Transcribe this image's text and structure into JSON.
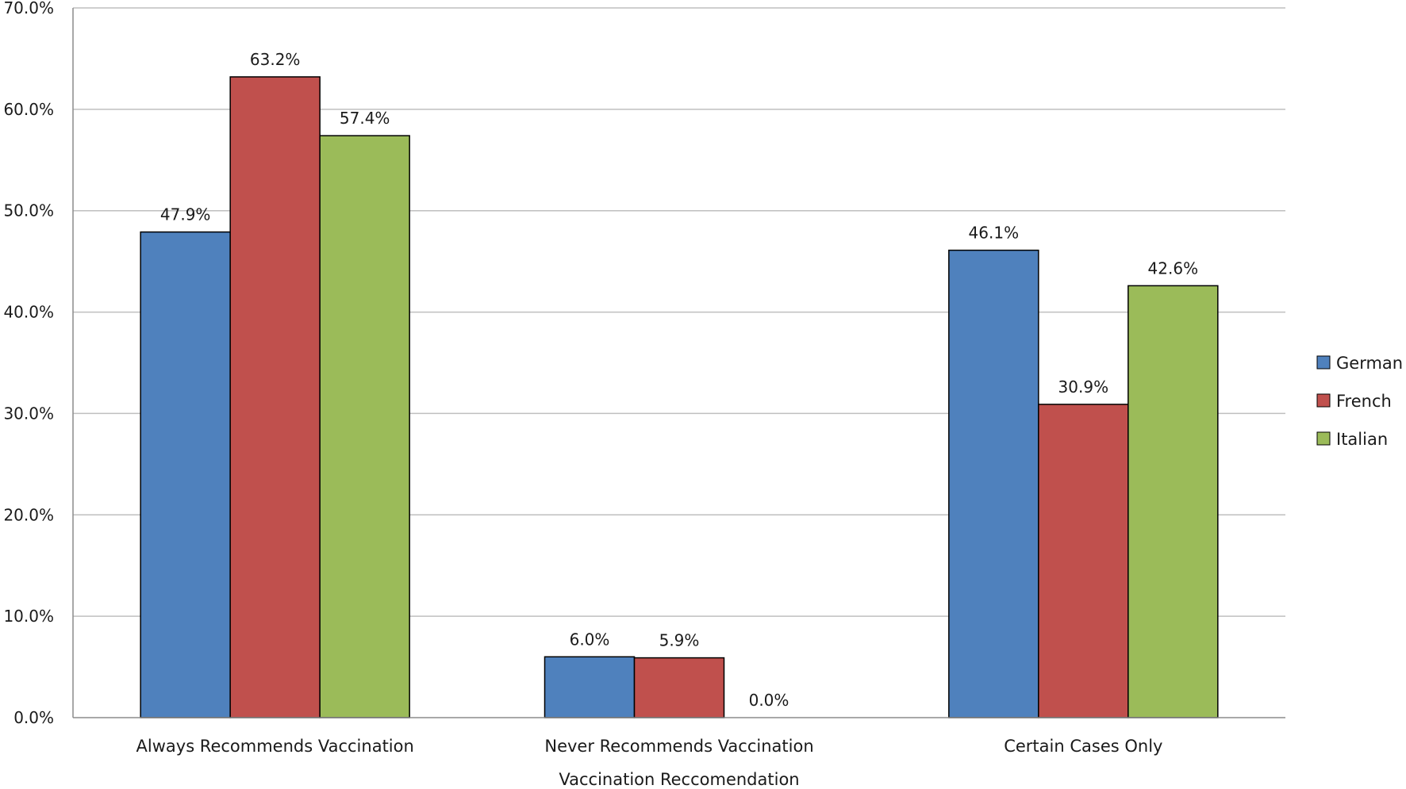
{
  "chart_data": {
    "type": "bar",
    "title": "",
    "xlabel": "Vaccination Reccomendation",
    "ylabel": "",
    "ylim": [
      0,
      70
    ],
    "y_tick_step": 10,
    "y_tick_labels": [
      "0.0%",
      "10.0%",
      "20.0%",
      "30.0%",
      "40.0%",
      "50.0%",
      "60.0%",
      "70.0%"
    ],
    "grid": true,
    "legend_position": "right",
    "categories": [
      "Always Recommends Vaccination",
      "Never Recommends Vaccination",
      "Certain Cases Only"
    ],
    "series": [
      {
        "name": "German",
        "color": "#4f81bd",
        "values": [
          47.9,
          6.0,
          46.1
        ],
        "labels": [
          "47.9%",
          "6.0%",
          "46.1%"
        ]
      },
      {
        "name": "French",
        "color": "#c0504d",
        "values": [
          63.2,
          5.9,
          30.9
        ],
        "labels": [
          "63.2%",
          "5.9%",
          "30.9%"
        ]
      },
      {
        "name": "Italian",
        "color": "#9bbb59",
        "values": [
          57.4,
          0.0,
          42.6
        ],
        "labels": [
          "57.4%",
          "0.0%",
          "42.6%"
        ]
      }
    ]
  }
}
